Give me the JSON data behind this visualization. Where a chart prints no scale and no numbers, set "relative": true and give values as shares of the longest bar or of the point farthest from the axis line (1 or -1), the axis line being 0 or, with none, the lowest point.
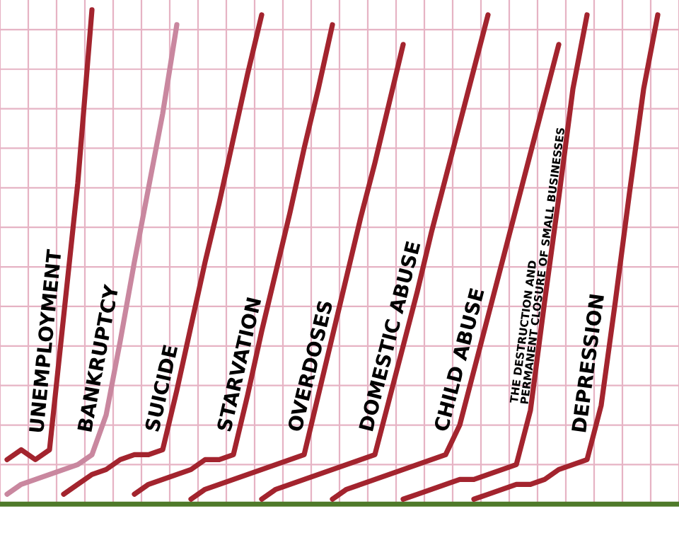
{
  "chart_data": {
    "type": "line",
    "relative": true,
    "grid": true,
    "legend": false,
    "marker": "none",
    "line_style": "solid",
    "categories": [
      null,
      null,
      null,
      null,
      null,
      null,
      null,
      null,
      null,
      null,
      null,
      null,
      null,
      null,
      null,
      null,
      null,
      null,
      null,
      null,
      null,
      null,
      null,
      null,
      null,
      null,
      null,
      null,
      null,
      null,
      null,
      null,
      null,
      null,
      null,
      null,
      null,
      null,
      null,
      null,
      null,
      null,
      null,
      null,
      null,
      null,
      null,
      null
    ],
    "series": [
      {
        "name": "UNEMPLOYMENT",
        "color": "#a3242e",
        "values": [
          0.09,
          0.11,
          0.09,
          0.11,
          0.38,
          0.65,
          1.0,
          null,
          null,
          null,
          null,
          null,
          null,
          null,
          null,
          null,
          null,
          null,
          null,
          null,
          null,
          null,
          null,
          null,
          null,
          null,
          null,
          null,
          null,
          null,
          null,
          null,
          null,
          null,
          null,
          null,
          null,
          null,
          null,
          null,
          null,
          null,
          null,
          null,
          null,
          null,
          null,
          null
        ]
      },
      {
        "name": "BANKRUPTCY",
        "color": "#c9879f",
        "values": [
          0.02,
          0.04,
          0.05,
          0.06,
          0.07,
          0.08,
          0.1,
          0.18,
          0.33,
          0.49,
          0.64,
          0.79,
          0.97,
          null,
          null,
          null,
          null,
          null,
          null,
          null,
          null,
          null,
          null,
          null,
          null,
          null,
          null,
          null,
          null,
          null,
          null,
          null,
          null,
          null,
          null,
          null,
          null,
          null,
          null,
          null,
          null,
          null,
          null,
          null,
          null,
          null,
          null,
          null
        ]
      },
      {
        "name": "SUICIDE",
        "color": "#a3242e",
        "values": [
          null,
          null,
          null,
          null,
          0.02,
          0.04,
          0.06,
          0.07,
          0.09,
          0.1,
          0.1,
          0.11,
          0.23,
          0.36,
          0.49,
          0.61,
          0.74,
          0.87,
          0.99,
          null,
          null,
          null,
          null,
          null,
          null,
          null,
          null,
          null,
          null,
          null,
          null,
          null,
          null,
          null,
          null,
          null,
          null,
          null,
          null,
          null,
          null,
          null,
          null,
          null,
          null,
          null,
          null,
          null
        ]
      },
      {
        "name": "STARVATION",
        "color": "#a3242e",
        "values": [
          null,
          null,
          null,
          null,
          null,
          null,
          null,
          null,
          null,
          0.02,
          0.04,
          0.05,
          0.06,
          0.07,
          0.09,
          0.09,
          0.1,
          0.22,
          0.35,
          0.47,
          0.59,
          0.72,
          0.84,
          0.97,
          null,
          null,
          null,
          null,
          null,
          null,
          null,
          null,
          null,
          null,
          null,
          null,
          null,
          null,
          null,
          null,
          null,
          null,
          null,
          null,
          null,
          null,
          null,
          null
        ]
      },
      {
        "name": "OVERDOSES",
        "color": "#a3242e",
        "values": [
          null,
          null,
          null,
          null,
          null,
          null,
          null,
          null,
          null,
          null,
          null,
          null,
          null,
          0.01,
          0.03,
          0.04,
          0.05,
          0.06,
          0.07,
          0.08,
          0.09,
          0.1,
          0.22,
          0.34,
          0.46,
          0.58,
          0.69,
          0.81,
          0.93,
          null,
          null,
          null,
          null,
          null,
          null,
          null,
          null,
          null,
          null,
          null,
          null,
          null,
          null,
          null,
          null,
          null,
          null,
          null
        ]
      },
      {
        "name": "DOMESTIC ABUSE",
        "color": "#a3242e",
        "values": [
          null,
          null,
          null,
          null,
          null,
          null,
          null,
          null,
          null,
          null,
          null,
          null,
          null,
          null,
          null,
          null,
          null,
          null,
          0.01,
          0.03,
          0.04,
          0.05,
          0.06,
          0.07,
          0.08,
          0.09,
          0.1,
          0.21,
          0.32,
          0.43,
          0.55,
          0.66,
          0.77,
          0.88,
          0.99,
          null,
          null,
          null,
          null,
          null,
          null,
          null,
          null,
          null,
          null,
          null,
          null,
          null
        ]
      },
      {
        "name": "CHILD ABUSE",
        "color": "#a3242e",
        "values": [
          null,
          null,
          null,
          null,
          null,
          null,
          null,
          null,
          null,
          null,
          null,
          null,
          null,
          null,
          null,
          null,
          null,
          null,
          null,
          null,
          null,
          null,
          null,
          0.01,
          0.03,
          0.04,
          0.05,
          0.06,
          0.07,
          0.08,
          0.09,
          0.1,
          0.16,
          0.27,
          0.38,
          0.49,
          0.6,
          0.71,
          0.82,
          0.93,
          null,
          null,
          null,
          null,
          null,
          null,
          null,
          null
        ]
      },
      {
        "name": "THE DESTRUCTION AND\nPERMANENT CLOSURE OF SMALL BUSINESSES",
        "color": "#a3242e",
        "values": [
          null,
          null,
          null,
          null,
          null,
          null,
          null,
          null,
          null,
          null,
          null,
          null,
          null,
          null,
          null,
          null,
          null,
          null,
          null,
          null,
          null,
          null,
          null,
          null,
          null,
          null,
          null,
          null,
          0.01,
          0.02,
          0.03,
          0.04,
          0.05,
          0.05,
          0.06,
          0.07,
          0.08,
          0.19,
          0.41,
          0.62,
          0.84,
          0.99,
          null,
          null,
          null,
          null,
          null,
          null
        ]
      },
      {
        "name": "DEPRESSION",
        "color": "#a3242e",
        "values": [
          null,
          null,
          null,
          null,
          null,
          null,
          null,
          null,
          null,
          null,
          null,
          null,
          null,
          null,
          null,
          null,
          null,
          null,
          null,
          null,
          null,
          null,
          null,
          null,
          null,
          null,
          null,
          null,
          null,
          null,
          null,
          null,
          null,
          0.01,
          0.02,
          0.03,
          0.04,
          0.04,
          0.05,
          0.07,
          0.08,
          0.09,
          0.2,
          0.41,
          0.63,
          0.84,
          0.99,
          null
        ]
      }
    ]
  }
}
